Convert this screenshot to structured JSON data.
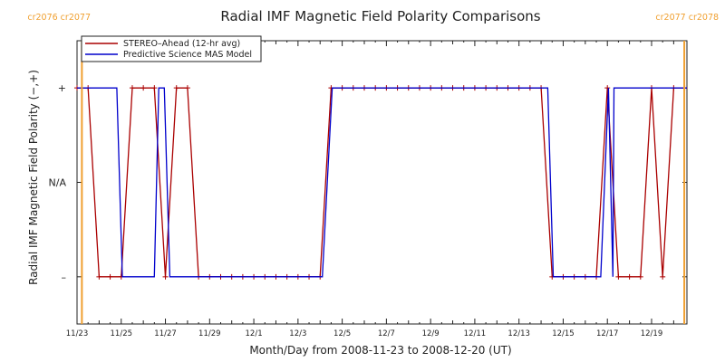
{
  "chart_data": {
    "type": "line",
    "title": "Radial IMF Magnetic Field Polarity Comparisons",
    "xlabel": "Month/Day from 2008-11-23 to 2008-12-20 (UT)",
    "ylabel": "Radial IMF Magnetic Field Polarity (−,+)",
    "x_unit": "days from 2008-11-23 00:00 UT",
    "xlim": [
      0,
      27.6
    ],
    "ylim": [
      -1.5,
      1.5
    ],
    "x_ticks": [
      {
        "x": 0,
        "label": "11/23"
      },
      {
        "x": 2,
        "label": "11/25"
      },
      {
        "x": 4,
        "label": "11/27"
      },
      {
        "x": 6,
        "label": "11/29"
      },
      {
        "x": 8,
        "label": "12/1"
      },
      {
        "x": 10,
        "label": "12/3"
      },
      {
        "x": 12,
        "label": "12/5"
      },
      {
        "x": 14,
        "label": "12/7"
      },
      {
        "x": 16,
        "label": "12/9"
      },
      {
        "x": 18,
        "label": "12/11"
      },
      {
        "x": 20,
        "label": "12/13"
      },
      {
        "x": 22,
        "label": "12/15"
      },
      {
        "x": 24,
        "label": "12/17"
      },
      {
        "x": 26,
        "label": "12/19"
      }
    ],
    "y_ticks": [
      {
        "y": 1,
        "label": "+"
      },
      {
        "y": 0,
        "label": "N/A"
      },
      {
        "y": -1,
        "label": "–"
      }
    ],
    "legend_position": "top-left",
    "series": [
      {
        "name": "STEREO–Ahead (12-hr avg)",
        "color": "#aa0000",
        "markers": true,
        "points": [
          [
            0,
            1
          ],
          [
            0.5,
            1
          ],
          [
            1.0,
            -1
          ],
          [
            1.5,
            -1
          ],
          [
            2.0,
            -1
          ],
          [
            2.5,
            1
          ],
          [
            3.0,
            1
          ],
          [
            3.5,
            1
          ],
          [
            4.0,
            -1
          ],
          [
            4.5,
            1
          ],
          [
            5.0,
            1
          ],
          [
            5.5,
            -1
          ],
          [
            6.0,
            -1
          ],
          [
            6.5,
            -1
          ],
          [
            7.0,
            -1
          ],
          [
            7.5,
            -1
          ],
          [
            8.0,
            -1
          ],
          [
            8.5,
            -1
          ],
          [
            9.0,
            -1
          ],
          [
            9.5,
            -1
          ],
          [
            10.0,
            -1
          ],
          [
            10.5,
            -1
          ],
          [
            11.0,
            -1
          ],
          [
            11.5,
            1
          ],
          [
            12.0,
            1
          ],
          [
            12.5,
            1
          ],
          [
            13.0,
            1
          ],
          [
            13.5,
            1
          ],
          [
            14.0,
            1
          ],
          [
            14.5,
            1
          ],
          [
            15.0,
            1
          ],
          [
            15.5,
            1
          ],
          [
            16.0,
            1
          ],
          [
            16.5,
            1
          ],
          [
            17.0,
            1
          ],
          [
            17.5,
            1
          ],
          [
            18.0,
            1
          ],
          [
            18.5,
            1
          ],
          [
            19.0,
            1
          ],
          [
            19.5,
            1
          ],
          [
            20.0,
            1
          ],
          [
            20.5,
            1
          ],
          [
            21.0,
            1
          ],
          [
            21.5,
            -1
          ],
          [
            22.0,
            -1
          ],
          [
            22.5,
            -1
          ],
          [
            23.0,
            -1
          ],
          [
            23.5,
            -1
          ],
          [
            24.0,
            1
          ],
          [
            24.5,
            -1
          ],
          [
            25.0,
            -1
          ],
          [
            25.5,
            -1
          ],
          [
            26.0,
            1
          ],
          [
            26.5,
            -1
          ],
          [
            27.0,
            1
          ],
          [
            27.5,
            1
          ]
        ]
      },
      {
        "name": "Predictive Science MAS Model",
        "color": "#0000cc",
        "markers": false,
        "points": [
          [
            0,
            1
          ],
          [
            1.8,
            1
          ],
          [
            2.05,
            -1
          ],
          [
            3.5,
            -1
          ],
          [
            3.7,
            1
          ],
          [
            3.95,
            1
          ],
          [
            4.2,
            -1
          ],
          [
            11.1,
            -1
          ],
          [
            11.55,
            1
          ],
          [
            21.3,
            1
          ],
          [
            21.55,
            -1
          ],
          [
            23.7,
            -1
          ],
          [
            24.05,
            1
          ],
          [
            24.25,
            -1
          ],
          [
            24.3,
            1
          ],
          [
            27.6,
            1
          ]
        ]
      }
    ],
    "markers": [
      {
        "x": 0.22,
        "color": "#f0a030",
        "label": "cr2076 cr2077",
        "label_side": "right"
      },
      {
        "x": 27.48,
        "color": "#f0a030",
        "label": "cr2077 cr2078",
        "label_side": "left"
      }
    ]
  }
}
